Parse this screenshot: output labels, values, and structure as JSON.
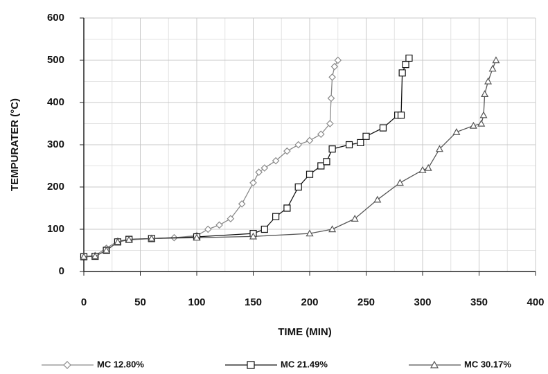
{
  "chart_data": {
    "type": "line",
    "x_label": "TIME (MIN)",
    "y_label": "TEMPURATER (°C)",
    "xlim": [
      0,
      400
    ],
    "xticks": [
      0,
      50,
      100,
      150,
      200,
      250,
      300,
      350,
      400
    ],
    "ylim": [
      0,
      600
    ],
    "yticks": [
      0,
      100,
      200,
      300,
      400,
      500,
      600
    ],
    "grid": true,
    "legend": "bottom",
    "series": [
      {
        "name": "MC 12.80%",
        "color": "#8a8a8a",
        "marker": "diamond",
        "x": [
          0,
          10,
          20,
          30,
          40,
          60,
          80,
          100,
          110,
          120,
          130,
          140,
          150,
          155,
          160,
          170,
          180,
          190,
          200,
          210,
          218,
          219,
          220,
          222,
          225
        ],
        "values": [
          35,
          38,
          55,
          72,
          76,
          78,
          80,
          85,
          100,
          110,
          125,
          160,
          210,
          235,
          245,
          262,
          285,
          300,
          310,
          325,
          350,
          410,
          460,
          485,
          500
        ]
      },
      {
        "name": "MC 21.49%",
        "color": "#111111",
        "marker": "square",
        "x": [
          0,
          10,
          20,
          30,
          40,
          60,
          100,
          150,
          160,
          170,
          180,
          190,
          200,
          210,
          215,
          220,
          235,
          245,
          250,
          265,
          278,
          281,
          282,
          285,
          288
        ],
        "values": [
          35,
          36,
          50,
          70,
          76,
          78,
          82,
          90,
          100,
          130,
          150,
          200,
          230,
          250,
          260,
          290,
          300,
          305,
          320,
          340,
          370,
          370,
          470,
          490,
          505
        ]
      },
      {
        "name": "MC 30.17%",
        "color": "#555555",
        "marker": "triangle",
        "x": [
          0,
          10,
          20,
          30,
          40,
          60,
          100,
          150,
          200,
          220,
          240,
          260,
          280,
          300,
          305,
          315,
          330,
          345,
          352,
          354,
          355,
          358,
          362,
          365
        ],
        "values": [
          35,
          36,
          50,
          70,
          75,
          78,
          80,
          83,
          90,
          100,
          125,
          170,
          210,
          240,
          245,
          290,
          330,
          345,
          350,
          370,
          420,
          450,
          480,
          500
        ]
      }
    ]
  }
}
